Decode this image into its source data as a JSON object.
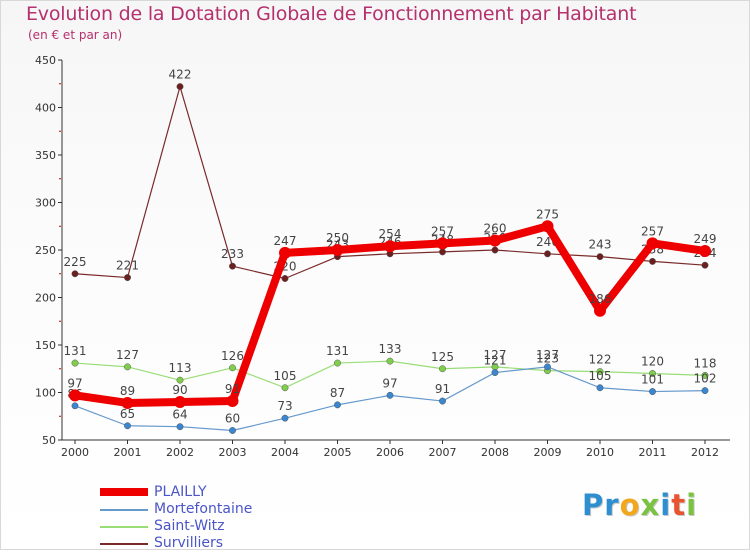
{
  "header": {
    "title": "Evolution de la Dotation Globale de Fonctionnement par Habitant",
    "subtitle": "(en € et par an)"
  },
  "colors": {
    "title": "#b5306e",
    "axis": "#333333",
    "tick_red": "#cc0000",
    "legend_text": "#4a55c8"
  },
  "chart_data": {
    "type": "line",
    "title": "Evolution de la Dotation Globale de Fonctionnement par Habitant",
    "subtitle": "(en € et par an)",
    "xlabel": "",
    "ylabel": "",
    "ylim": [
      50,
      450
    ],
    "yticks": [
      50,
      100,
      150,
      200,
      250,
      300,
      350,
      400,
      450
    ],
    "grid": false,
    "legend": "bottom-left",
    "categories": [
      "2000",
      "2001",
      "2002",
      "2003",
      "2004",
      "2005",
      "2006",
      "2007",
      "2008",
      "2009",
      "2010",
      "2011",
      "2012"
    ],
    "series": [
      {
        "name": "Survilliers",
        "color": "#7a2a2a",
        "marker": "#6b1f1f",
        "width": 1.2,
        "labels": true,
        "values": [
          225,
          221,
          422,
          233,
          220,
          243,
          246,
          248,
          250,
          246,
          243,
          238,
          234
        ]
      },
      {
        "name": "Saint-Witz",
        "color": "#99dd77",
        "marker": "#7fcf4a",
        "width": 1.2,
        "labels": true,
        "values": [
          131,
          127,
          113,
          126,
          105,
          131,
          133,
          125,
          127,
          123,
          122,
          120,
          118
        ]
      },
      {
        "name": "Mortefontaine",
        "color": "#6699cc",
        "marker": "#3a86cf",
        "width": 1.2,
        "labels": true,
        "values": [
          86,
          65,
          64,
          60,
          73,
          87,
          97,
          91,
          121,
          127,
          105,
          101,
          102
        ]
      },
      {
        "name": "PLAILLY",
        "color": "#ee0000",
        "marker": "#ee0000",
        "width": 8,
        "labels": true,
        "values": [
          97,
          89,
          90,
          91,
          247,
          250,
          254,
          257,
          260,
          275,
          186,
          257,
          249
        ]
      }
    ]
  },
  "legend": {
    "items": [
      {
        "label": "PLAILLY",
        "color": "#ee0000"
      },
      {
        "label": "Mortefontaine",
        "color": "#6699cc"
      },
      {
        "label": "Saint-Witz",
        "color": "#99dd77"
      },
      {
        "label": "Survilliers",
        "color": "#7a2a2a"
      }
    ]
  },
  "logo": {
    "letters": [
      {
        "ch": "P",
        "color": "#2e8fd0"
      },
      {
        "ch": "r",
        "color": "#2e8fd0"
      },
      {
        "ch": "o",
        "color": "#f2a81d"
      },
      {
        "ch": "x",
        "color": "#7cc242"
      },
      {
        "ch": "i",
        "color": "#2e8fd0"
      },
      {
        "ch": "t",
        "color": "#e8542f"
      },
      {
        "ch": "i",
        "color": "#7cc242"
      }
    ]
  }
}
